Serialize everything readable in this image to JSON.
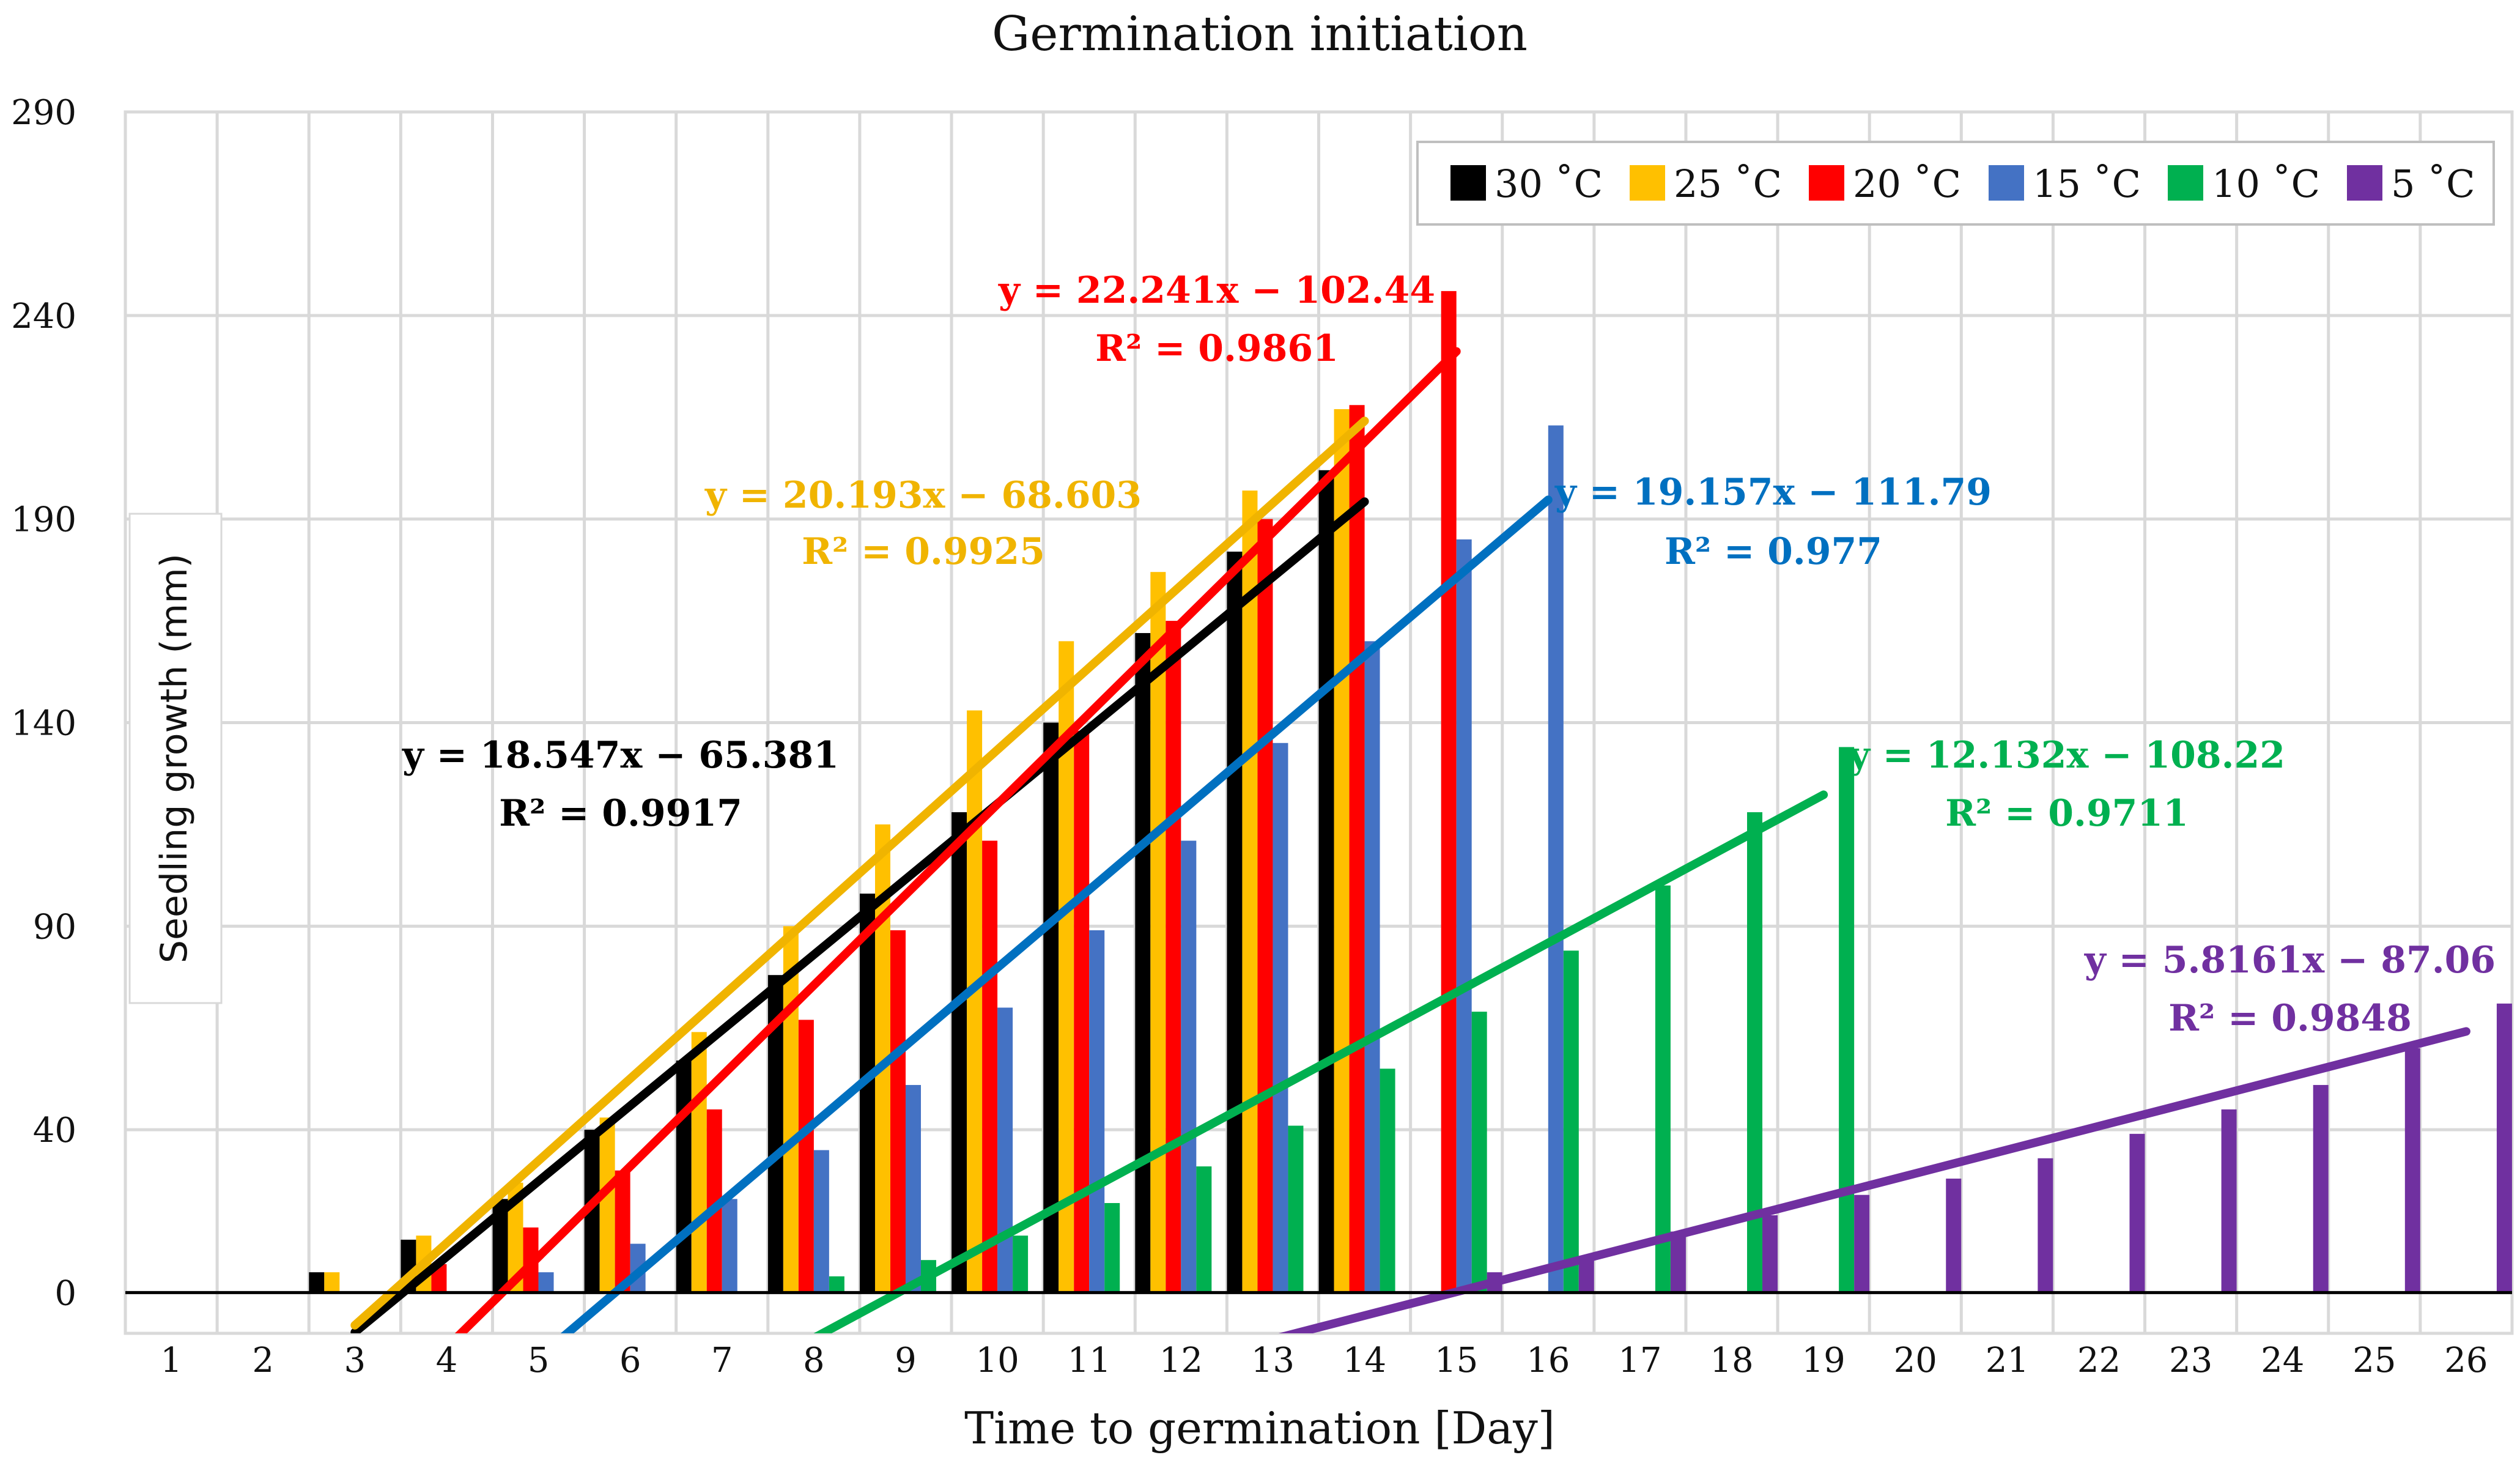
{
  "chart_data": {
    "type": "bar",
    "title": "Germination initiation",
    "xlabel": "Time to germination [Day]",
    "ylabel": "Seedling growth (mm)",
    "ylim": [
      -10,
      290
    ],
    "yticks": [
      0,
      40,
      90,
      140,
      190,
      240,
      290
    ],
    "categories": [
      "1",
      "2",
      "3",
      "4",
      "5",
      "6",
      "7",
      "8",
      "9",
      "10",
      "11",
      "12",
      "13",
      "14",
      "15",
      "16",
      "17",
      "18",
      "19",
      "20",
      "21",
      "22",
      "23",
      "24",
      "25",
      "26"
    ],
    "series": [
      {
        "name": "30 ˚C",
        "color": "#000000",
        "values": [
          null,
          null,
          5,
          13,
          23,
          40,
          57,
          78,
          98,
          118,
          140,
          162,
          182,
          202,
          null,
          null,
          null,
          null,
          null,
          null,
          null,
          null,
          null,
          null,
          null,
          null
        ]
      },
      {
        "name": "25 ˚C",
        "color": "#FFC000",
        "values": [
          null,
          null,
          5,
          14,
          27,
          43,
          64,
          90,
          115,
          143,
          160,
          177,
          197,
          217,
          null,
          null,
          null,
          null,
          null,
          null,
          null,
          null,
          null,
          null,
          null,
          null
        ]
      },
      {
        "name": "20 ˚C",
        "color": "#FF0000",
        "values": [
          null,
          null,
          null,
          7,
          16,
          30,
          45,
          67,
          89,
          111,
          138,
          165,
          190,
          218,
          246,
          null,
          null,
          null,
          null,
          null,
          null,
          null,
          null,
          null,
          null,
          null
        ]
      },
      {
        "name": "15 ˚C",
        "color": "#4472C4",
        "values": [
          null,
          null,
          null,
          null,
          5,
          12,
          23,
          35,
          51,
          70,
          89,
          111,
          135,
          160,
          185,
          213,
          null,
          null,
          null,
          null,
          null,
          null,
          null,
          null,
          null,
          null
        ]
      },
      {
        "name": "10 ˚C",
        "color": "#00B050",
        "values": [
          null,
          null,
          null,
          null,
          null,
          null,
          null,
          4,
          8,
          14,
          22,
          31,
          41,
          55,
          69,
          84,
          100,
          118,
          134,
          null,
          null,
          null,
          null,
          null,
          null,
          null
        ]
      },
      {
        "name": "5 ˚C",
        "color": "#7030A0",
        "values": [
          null,
          null,
          null,
          null,
          null,
          null,
          null,
          null,
          null,
          null,
          null,
          null,
          null,
          null,
          5,
          8,
          15,
          19,
          24,
          28,
          33,
          39,
          45,
          51,
          60,
          71
        ]
      }
    ],
    "trendlines": [
      {
        "series": "30 ˚C",
        "color": "#000000",
        "slope": 18.547,
        "intercept": -65.381,
        "x_range": [
          3,
          14
        ],
        "equation": "y = 18.547x − 65.381",
        "r2": "R² = 0.9917"
      },
      {
        "series": "25 ˚C",
        "color": "#F0B400",
        "slope": 20.193,
        "intercept": -68.603,
        "x_range": [
          3,
          14
        ],
        "equation": "y = 20.193x − 68.603",
        "r2": "R² = 0.9925"
      },
      {
        "series": "20 ˚C",
        "color": "#FF0000",
        "slope": 22.241,
        "intercept": -102.44,
        "x_range": [
          4,
          15
        ],
        "equation": "y = 22.241x − 102.44",
        "r2": "R² = 0.9861"
      },
      {
        "series": "15 ˚C",
        "color": "#0070C0",
        "slope": 19.157,
        "intercept": -111.79,
        "x_range": [
          5,
          16
        ],
        "equation": "y = 19.157x − 111.79",
        "r2": "R² = 0.977"
      },
      {
        "series": "10 ˚C",
        "color": "#00B050",
        "slope": 12.132,
        "intercept": -108.22,
        "x_range": [
          8,
          19
        ],
        "equation": "y = 12.132x − 108.22",
        "r2": "R² = 0.9711"
      },
      {
        "series": "5 ˚C",
        "color": "#7030A0",
        "slope": 5.8161,
        "intercept": -87.06,
        "x_range": [
          13,
          26
        ],
        "equation": "y = 5.8161x − 87.06",
        "r2": "R² = 0.9848"
      }
    ],
    "grid": true,
    "legend_position": "top-right"
  }
}
